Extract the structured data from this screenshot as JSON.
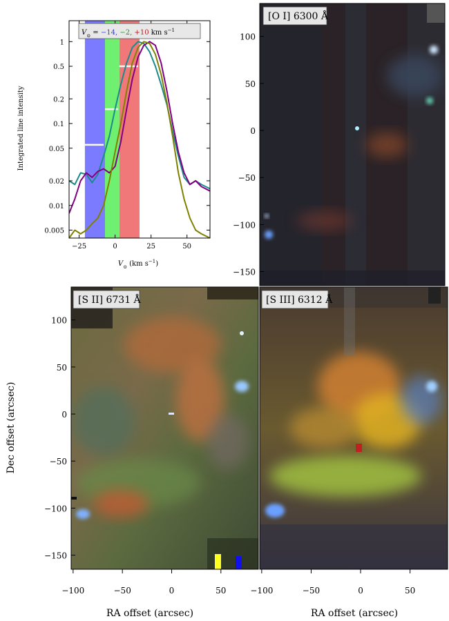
{
  "chart_data": [
    {
      "type": "line",
      "panel": "line-profile",
      "legend_prefix": "V",
      "legend_values": [
        "−14,",
        "−2,",
        "+10"
      ],
      "legend_units": "km s",
      "legend_exponent": "−1",
      "legend_colors": [
        "#4040c8",
        "#2e8b2e",
        "#b02020"
      ],
      "xlabel": "V",
      "xlabel_units": "(km s",
      "xlabel_exponent": "−1",
      "ylabel": "Integrated line intensity",
      "x_ticks": [
        "−25",
        "0",
        "25",
        "50"
      ],
      "x_tick_values": [
        -25,
        0,
        25,
        50
      ],
      "y_ticks": [
        "1",
        "0.5",
        "0.2",
        "0.1",
        "0.05",
        "0.02",
        "0.01",
        "0.005"
      ],
      "y_tick_values": [
        1,
        0.5,
        0.2,
        0.1,
        0.05,
        0.02,
        0.01,
        0.005
      ],
      "xlim": [
        -32,
        66
      ],
      "ylim": [
        0.004,
        1.8
      ],
      "yscale": "log",
      "bands": [
        {
          "x0": -21,
          "x1": -7,
          "color": "#7b7bff",
          "level": 0.055
        },
        {
          "x0": -7,
          "x1": 3,
          "color": "#70f070",
          "level": 0.15
        },
        {
          "x0": 3,
          "x1": 17,
          "color": "#f07878",
          "level": 0.5
        }
      ],
      "series": [
        {
          "color": "#1a8a8a",
          "x": [
            -32,
            -28,
            -24,
            -20,
            -16,
            -12,
            -8,
            -4,
            0,
            4,
            8,
            12,
            16,
            20,
            24,
            28,
            32,
            36,
            40,
            44,
            48,
            52,
            56,
            60,
            66
          ],
          "y": [
            0.02,
            0.018,
            0.025,
            0.024,
            0.019,
            0.024,
            0.04,
            0.07,
            0.15,
            0.3,
            0.55,
            0.85,
            1.0,
            0.95,
            0.75,
            0.5,
            0.3,
            0.17,
            0.08,
            0.04,
            0.022,
            0.018,
            0.02,
            0.018,
            0.016
          ]
        },
        {
          "color": "#800080",
          "x": [
            -32,
            -28,
            -24,
            -20,
            -16,
            -12,
            -8,
            -4,
            0,
            4,
            8,
            12,
            16,
            20,
            24,
            28,
            32,
            36,
            40,
            44,
            48,
            52,
            56,
            60,
            66
          ],
          "y": [
            0.008,
            0.012,
            0.02,
            0.025,
            0.022,
            0.026,
            0.028,
            0.025,
            0.03,
            0.06,
            0.15,
            0.35,
            0.65,
            0.9,
            1.0,
            0.9,
            0.55,
            0.25,
            0.1,
            0.045,
            0.025,
            0.018,
            0.02,
            0.017,
            0.015
          ]
        },
        {
          "color": "#808000",
          "x": [
            -32,
            -28,
            -24,
            -20,
            -16,
            -12,
            -8,
            -4,
            0,
            4,
            8,
            12,
            16,
            20,
            24,
            28,
            32,
            36,
            40,
            44,
            48,
            52,
            56,
            60,
            66
          ],
          "y": [
            0.004,
            0.005,
            0.0045,
            0.005,
            0.006,
            0.007,
            0.01,
            0.02,
            0.045,
            0.1,
            0.25,
            0.55,
            0.85,
            1.0,
            0.95,
            0.7,
            0.4,
            0.18,
            0.07,
            0.025,
            0.012,
            0.007,
            0.005,
            0.0045,
            0.004
          ]
        }
      ]
    },
    {
      "type": "heatmap",
      "panel": "oi-map",
      "title": "[O I] 6300 Å",
      "y_ticks": [
        "100",
        "50",
        "0",
        "−50",
        "−100",
        "−150"
      ],
      "y_tick_values": [
        100,
        50,
        0,
        -50,
        -100,
        -150
      ],
      "ylim": [
        -165,
        135
      ]
    },
    {
      "type": "heatmap",
      "panel": "sii-map",
      "title": "[S II] 6731 Å",
      "xlabel": "RA offset (arcsec)",
      "ylabel": "Dec offset (arcsec)",
      "x_ticks": [
        "−100",
        "−50",
        "0",
        "50"
      ],
      "x_tick_values": [
        -100,
        -50,
        0,
        50
      ],
      "y_ticks": [
        "100",
        "50",
        "0",
        "−50",
        "−100",
        "−150"
      ],
      "y_tick_values": [
        100,
        50,
        0,
        -50,
        -100,
        -150
      ],
      "xlim": [
        -102,
        88
      ],
      "ylim": [
        -165,
        135
      ]
    },
    {
      "type": "heatmap",
      "panel": "siii-map",
      "title": "[S III] 6312 Å",
      "xlabel": "RA offset (arcsec)",
      "x_ticks": [
        "−100",
        "−50",
        "0",
        "50"
      ],
      "x_tick_values": [
        -100,
        -50,
        0,
        50
      ],
      "xlim": [
        -102,
        88
      ],
      "ylim": [
        -165,
        135
      ]
    }
  ]
}
